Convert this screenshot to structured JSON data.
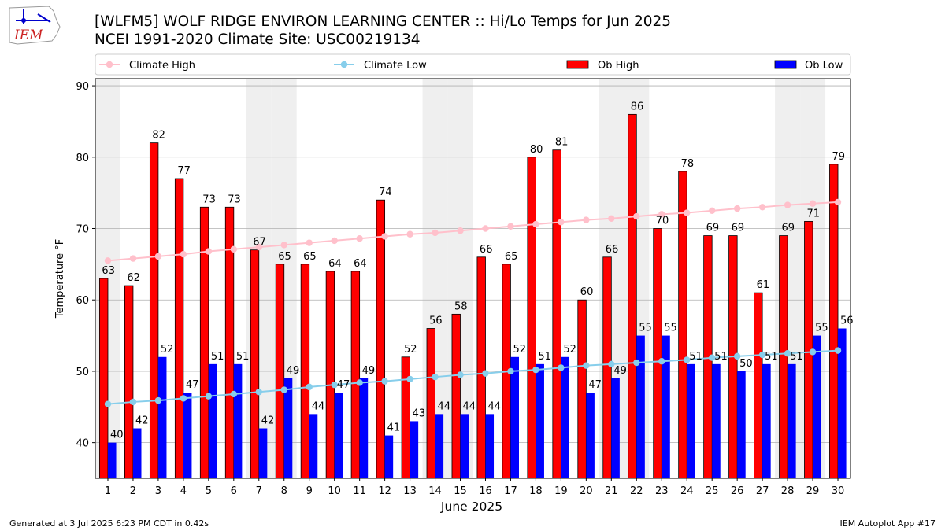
{
  "header": {
    "logo_text": "IEM",
    "title_line1": "[WLFM5] WOLF RIDGE ENVIRON LEARNING CENTER :: Hi/Lo Temps for Jun 2025",
    "title_line2": "NCEI 1991-2020 Climate Site: USC00219134"
  },
  "footer": {
    "generated": "Generated at 3 Jul 2025 6:23 PM CDT in 0.42s",
    "app": "IEM Autoplot App #17"
  },
  "colors": {
    "ob_high": "#ff0000",
    "ob_low": "#0000ff",
    "climate_high": "#ffc0cb",
    "climate_low": "#87ceeb",
    "weekend_shade": "#efefef"
  },
  "chart_data": {
    "type": "bar",
    "xlabel": "June 2025",
    "ylabel": "Temperature °F",
    "ylim": [
      35,
      91
    ],
    "yticks": [
      40,
      50,
      60,
      70,
      80,
      90
    ],
    "grid": true,
    "legend_position": "top",
    "categories": [
      "1",
      "2",
      "3",
      "4",
      "5",
      "6",
      "7",
      "8",
      "9",
      "10",
      "11",
      "12",
      "13",
      "14",
      "15",
      "16",
      "17",
      "18",
      "19",
      "20",
      "21",
      "22",
      "23",
      "24",
      "25",
      "26",
      "27",
      "28",
      "29",
      "30"
    ],
    "shaded_days": [
      1,
      7,
      8,
      14,
      15,
      21,
      22,
      28,
      29
    ],
    "series": [
      {
        "name": "Ob High",
        "kind": "bar",
        "values": [
          63,
          62,
          82,
          77,
          73,
          73,
          67,
          65,
          65,
          64,
          64,
          74,
          52,
          56,
          58,
          66,
          65,
          80,
          81,
          60,
          66,
          86,
          70,
          78,
          69,
          69,
          61,
          69,
          71,
          79
        ]
      },
      {
        "name": "Ob Low",
        "kind": "bar",
        "values": [
          40,
          42,
          52,
          47,
          51,
          51,
          42,
          49,
          44,
          47,
          49,
          41,
          43,
          44,
          44,
          44,
          52,
          51,
          52,
          47,
          49,
          55,
          55,
          51,
          51,
          50,
          51,
          51,
          55,
          56
        ]
      },
      {
        "name": "Climate High",
        "kind": "line",
        "values": [
          65.5,
          65.8,
          66.1,
          66.4,
          66.8,
          67.1,
          67.4,
          67.7,
          68.0,
          68.3,
          68.6,
          68.9,
          69.2,
          69.4,
          69.7,
          70.0,
          70.3,
          70.6,
          70.9,
          71.2,
          71.4,
          71.7,
          72.0,
          72.2,
          72.5,
          72.8,
          73.0,
          73.3,
          73.5,
          73.7
        ]
      },
      {
        "name": "Climate Low",
        "kind": "line",
        "values": [
          45.4,
          45.7,
          45.9,
          46.2,
          46.5,
          46.8,
          47.1,
          47.4,
          47.8,
          48.1,
          48.4,
          48.6,
          48.9,
          49.2,
          49.5,
          49.7,
          50.0,
          50.2,
          50.5,
          50.8,
          51.0,
          51.2,
          51.4,
          51.6,
          51.9,
          52.1,
          52.3,
          52.5,
          52.7,
          52.9
        ]
      }
    ]
  }
}
